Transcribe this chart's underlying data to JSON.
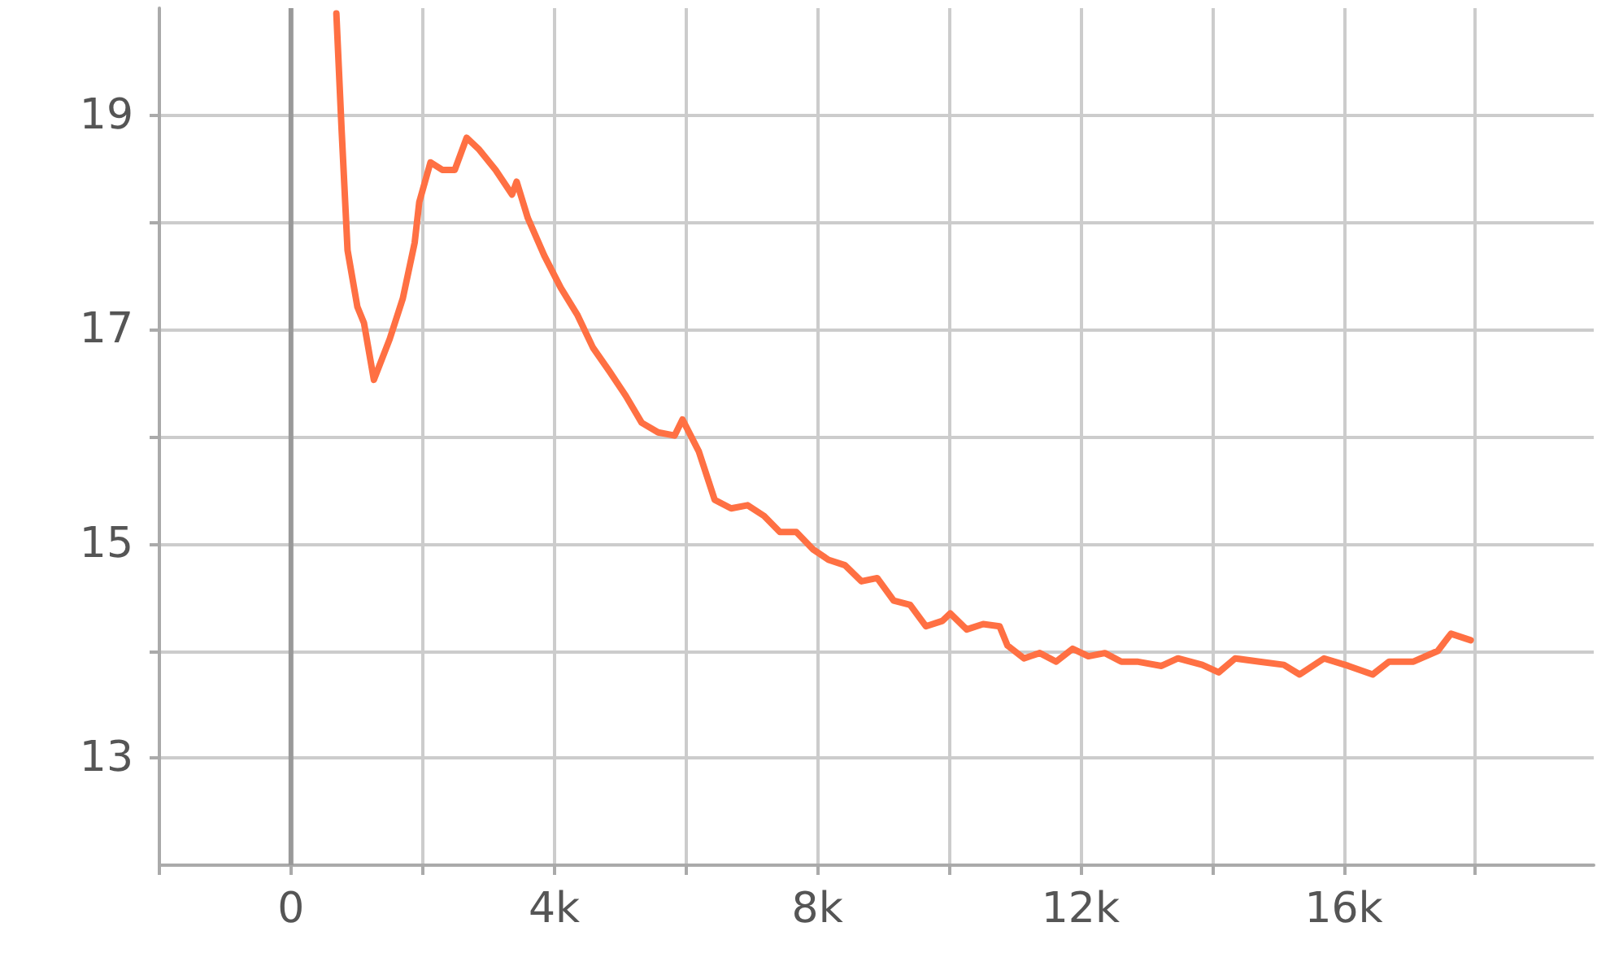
{
  "chart_data": {
    "type": "line",
    "grid": true,
    "marker": "none",
    "line_style": "solid",
    "xlim": [
      -2000,
      19800
    ],
    "ylim": [
      12,
      20
    ],
    "xticks": [
      {
        "value": -2000,
        "label": null
      },
      0,
      {
        "value": 2000,
        "label": null
      },
      {
        "value": 4000,
        "label": "4k"
      },
      {
        "value": 6000,
        "label": null
      },
      {
        "value": 8000,
        "label": "8k"
      },
      {
        "value": 10000,
        "label": null
      },
      {
        "value": 12000,
        "label": "12k"
      },
      {
        "value": 14000,
        "label": null
      },
      {
        "value": 16000,
        "label": "16k"
      },
      {
        "value": 18000,
        "label": null
      }
    ],
    "yticks": [
      13,
      {
        "value": 14,
        "label": null
      },
      15,
      {
        "value": 16,
        "label": null
      },
      17,
      {
        "value": 18,
        "label": null
      },
      19
    ],
    "ref_lines": [
      {
        "axis": "x",
        "value": 0,
        "color": "#999999"
      }
    ],
    "series": [
      {
        "color": "#ff7043",
        "x": [
          690,
          770,
          860,
          1010,
          1110,
          1260,
          1500,
          1700,
          1880,
          1950,
          2120,
          2300,
          2490,
          2670,
          2860,
          3110,
          3360,
          3430,
          3600,
          3850,
          4100,
          4350,
          4590,
          4840,
          5090,
          5330,
          5580,
          5830,
          5950,
          6200,
          6440,
          6690,
          6940,
          7190,
          7430,
          7680,
          7930,
          8170,
          8420,
          8670,
          8910,
          9160,
          9410,
          9650,
          9900,
          10020,
          10270,
          10520,
          10770,
          10890,
          11140,
          11380,
          11630,
          11880,
          12120,
          12370,
          12620,
          12860,
          13230,
          13480,
          13850,
          14100,
          14350,
          14720,
          15090,
          15330,
          15700,
          16070,
          16440,
          16690,
          17060,
          17430,
          17630,
          17930
        ],
        "values": [
          19.95,
          18.86,
          17.74,
          17.21,
          17.06,
          16.53,
          16.91,
          17.29,
          17.81,
          18.19,
          18.56,
          18.49,
          18.49,
          18.79,
          18.68,
          18.49,
          18.26,
          18.38,
          18.04,
          17.69,
          17.39,
          17.14,
          16.83,
          16.61,
          16.38,
          16.13,
          16.04,
          16.01,
          16.16,
          15.86,
          15.41,
          15.33,
          15.36,
          15.26,
          15.11,
          15.11,
          14.95,
          14.85,
          14.8,
          14.65,
          14.68,
          14.47,
          14.43,
          14.23,
          14.28,
          14.35,
          14.2,
          14.25,
          14.23,
          14.05,
          13.93,
          13.98,
          13.9,
          14.02,
          13.95,
          13.98,
          13.9,
          13.9,
          13.86,
          13.93,
          13.87,
          13.8,
          13.93,
          13.9,
          13.87,
          13.78,
          13.93,
          13.86,
          13.78,
          13.9,
          13.9,
          14.0,
          14.16,
          14.1
        ]
      }
    ]
  }
}
